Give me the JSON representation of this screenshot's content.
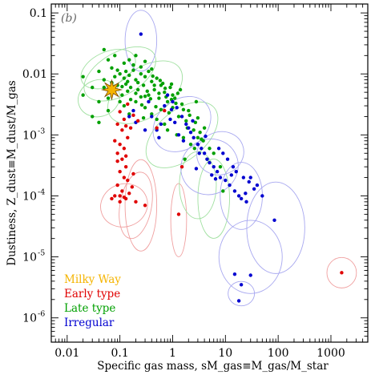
{
  "chart_data": {
    "type": "scatter",
    "panel_label": "(b)",
    "xlabel": "Specific gas mass, sM_gas≡M_gas/M_star",
    "ylabel": "Dustiness, Z_dust≡M_dust/M_gas",
    "xscale": "log",
    "yscale": "log",
    "xlim": [
      0.005,
      5000
    ],
    "ylim": [
      4e-07,
      0.14
    ],
    "x_ticks": [
      {
        "value": 0.01,
        "label": "0.01"
      },
      {
        "value": 0.1,
        "label": "0.1"
      },
      {
        "value": 1,
        "label": "1"
      },
      {
        "value": 10,
        "label": "10"
      },
      {
        "value": 100,
        "label": "100"
      },
      {
        "value": 1000,
        "label": "1000"
      }
    ],
    "y_ticks": [
      {
        "value": 0.1,
        "label": "0.1",
        "exp": ""
      },
      {
        "value": 0.01,
        "label": "0.01",
        "exp": ""
      },
      {
        "value": 0.001,
        "label": "10",
        "exp": "-3"
      },
      {
        "value": 0.0001,
        "label": "10",
        "exp": "-4"
      },
      {
        "value": 1e-05,
        "label": "10",
        "exp": "-5"
      },
      {
        "value": 1e-06,
        "label": "10",
        "exp": "-6"
      }
    ],
    "legend_placement": "bottom-left",
    "legend": [
      {
        "label": "Milky Way",
        "color": "#f5b400"
      },
      {
        "label": "Early type",
        "color": "#e00000"
      },
      {
        "label": "Late type",
        "color": "#00a000"
      },
      {
        "label": "Irregular",
        "color": "#0000d0"
      }
    ],
    "series": [
      {
        "legend_index": 0,
        "color": "#f5b400",
        "marker": "star",
        "points": [
          [
            0.07,
            0.0055
          ]
        ]
      },
      {
        "legend_index": 1,
        "color": "#e00000",
        "marker": "dot",
        "points": [
          [
            0.1,
            0.0024
          ],
          [
            0.12,
            0.0018
          ],
          [
            0.09,
            0.0015
          ],
          [
            0.13,
            0.0014
          ],
          [
            0.11,
            0.0012
          ],
          [
            0.14,
            0.0009
          ],
          [
            0.08,
            0.0008
          ],
          [
            0.1,
            0.0007
          ],
          [
            0.12,
            0.0006
          ],
          [
            0.09,
            0.0005
          ],
          [
            0.11,
            0.0004
          ],
          [
            0.13,
            0.0003
          ],
          [
            0.1,
            0.00025
          ],
          [
            0.12,
            0.0002
          ],
          [
            0.14,
            0.00018
          ],
          [
            0.09,
            0.00015
          ],
          [
            0.11,
            0.00012
          ],
          [
            0.08,
            0.0001
          ],
          [
            0.13,
            9e-05
          ],
          [
            0.1,
            8e-05
          ],
          [
            0.12,
            9.5e-05
          ],
          [
            0.15,
            0.00011
          ],
          [
            0.16,
            0.0013
          ],
          [
            0.18,
            0.0021
          ],
          [
            0.3,
            7e-05
          ],
          [
            0.5,
            0.0013
          ],
          [
            1.3,
            5e-05
          ],
          [
            1.5,
            0.0003
          ],
          [
            0.7,
            0.0025
          ],
          [
            0.22,
            0.0017
          ],
          [
            0.14,
            0.0032
          ],
          [
            0.17,
            0.00014
          ],
          [
            0.18,
            0.00023
          ],
          [
            0.09,
            0.00037
          ],
          [
            0.13,
            0.00045
          ],
          [
            0.1,
            0.0001
          ],
          [
            0.07,
            9e-05
          ],
          [
            0.2,
            8e-05
          ],
          [
            1600,
            5.5e-06
          ]
        ]
      },
      {
        "legend_index": 2,
        "color": "#00a000",
        "marker": "dot",
        "points": [
          [
            0.02,
            0.009
          ],
          [
            0.03,
            0.006
          ],
          [
            0.04,
            0.011
          ],
          [
            0.05,
            0.008
          ],
          [
            0.06,
            0.004
          ],
          [
            0.07,
            0.0125
          ],
          [
            0.05,
            0.006
          ],
          [
            0.08,
            0.009
          ],
          [
            0.09,
            0.0065
          ],
          [
            0.1,
            0.01
          ],
          [
            0.12,
            0.0085
          ],
          [
            0.11,
            0.0045
          ],
          [
            0.13,
            0.011
          ],
          [
            0.15,
            0.0095
          ],
          [
            0.14,
            0.0075
          ],
          [
            0.16,
            0.006
          ],
          [
            0.18,
            0.0115
          ],
          [
            0.2,
            0.008
          ],
          [
            0.22,
            0.0055
          ],
          [
            0.25,
            0.01
          ],
          [
            0.28,
            0.0065
          ],
          [
            0.3,
            0.009
          ],
          [
            0.35,
            0.0045
          ],
          [
            0.4,
            0.0075
          ],
          [
            0.45,
            0.0055
          ],
          [
            0.5,
            0.0085
          ],
          [
            0.55,
            0.004
          ],
          [
            0.6,
            0.0065
          ],
          [
            0.7,
            0.005
          ],
          [
            0.8,
            0.0035
          ],
          [
            0.9,
            0.006
          ],
          [
            1.0,
            0.0028
          ],
          [
            1.1,
            0.004
          ],
          [
            1.3,
            0.002
          ],
          [
            1.5,
            0.0032
          ],
          [
            1.8,
            0.0017
          ],
          [
            2.0,
            0.0025
          ],
          [
            2.5,
            0.0012
          ],
          [
            3.0,
            0.0019
          ],
          [
            3.5,
            0.00085
          ],
          [
            4.0,
            0.0013
          ],
          [
            5.0,
            0.0006
          ],
          [
            0.25,
            0.013
          ],
          [
            0.3,
            0.016
          ],
          [
            0.4,
            0.012
          ],
          [
            0.2,
            0.02
          ],
          [
            0.15,
            0.017
          ],
          [
            0.12,
            0.015
          ],
          [
            0.18,
            0.014
          ],
          [
            0.35,
            0.011
          ],
          [
            0.06,
            0.017
          ],
          [
            0.08,
            0.02
          ],
          [
            0.05,
            0.025
          ],
          [
            0.1,
            0.0035
          ],
          [
            0.12,
            0.003
          ],
          [
            0.2,
            0.0035
          ],
          [
            0.3,
            0.0028
          ],
          [
            0.4,
            0.0022
          ],
          [
            0.5,
            0.0018
          ],
          [
            0.7,
            0.0015
          ],
          [
            1.2,
            0.001
          ],
          [
            1.6,
            0.0009
          ],
          [
            2.2,
            0.0007
          ],
          [
            0.8,
            0.0012
          ],
          [
            0.6,
            0.0026
          ],
          [
            1.0,
            0.0045
          ],
          [
            0.45,
            0.0065
          ],
          [
            0.25,
            0.0042
          ],
          [
            0.16,
            0.0038
          ],
          [
            0.04,
            0.0035
          ],
          [
            0.03,
            0.002
          ],
          [
            0.06,
            0.0025
          ],
          [
            0.15,
            0.0022
          ],
          [
            0.28,
            0.0019
          ],
          [
            0.65,
            0.007
          ],
          [
            1.4,
            0.0055
          ],
          [
            2.8,
            0.0035
          ],
          [
            3.0,
            0.0009
          ],
          [
            6.0,
            0.0005
          ],
          [
            8.0,
            0.0003
          ],
          [
            4.5,
            0.0004
          ],
          [
            2.6,
            0.0006
          ],
          [
            1.7,
            0.0004
          ],
          [
            9.0,
            0.00012
          ],
          [
            0.04,
            0.0016
          ],
          [
            0.02,
            0.0045
          ],
          [
            0.09,
            0.0115
          ],
          [
            0.11,
            0.0062
          ],
          [
            0.22,
            0.0072
          ],
          [
            0.33,
            0.0052
          ],
          [
            0.55,
            0.0048
          ],
          [
            0.75,
            0.0042
          ],
          [
            0.95,
            0.0038
          ],
          [
            1.15,
            0.0033
          ],
          [
            1.6,
            0.0026
          ],
          [
            2.1,
            0.0021
          ],
          [
            2.7,
            0.0016
          ],
          [
            3.3,
            0.0011
          ],
          [
            3.8,
            0.0008
          ],
          [
            0.14,
            0.0052
          ],
          [
            0.26,
            0.0031
          ],
          [
            0.38,
            0.0039
          ],
          [
            0.48,
            0.0029
          ],
          [
            0.85,
            0.0023
          ],
          [
            1.9,
            0.0013
          ],
          [
            0.07,
            0.0072
          ],
          [
            0.13,
            0.0068
          ],
          [
            0.2,
            0.0048
          ],
          [
            0.3,
            0.0043
          ],
          [
            0.42,
            0.0092
          ],
          [
            0.58,
            0.0078
          ],
          [
            0.72,
            0.0058
          ],
          [
            0.95,
            0.0068
          ],
          [
            1.25,
            0.0048
          ]
        ]
      },
      {
        "legend_index": 3,
        "color": "#0000d0",
        "marker": "dot",
        "points": [
          [
            0.25,
            0.045
          ],
          [
            0.8,
            0.0045
          ],
          [
            1.0,
            0.0035
          ],
          [
            1.2,
            0.0028
          ],
          [
            1.5,
            0.002
          ],
          [
            0.9,
            0.0018
          ],
          [
            0.6,
            0.0015
          ],
          [
            0.5,
            0.0012
          ],
          [
            1.8,
            0.0015
          ],
          [
            2.2,
            0.0011
          ],
          [
            2.5,
            0.0009
          ],
          [
            3.0,
            0.0007
          ],
          [
            3.5,
            0.0006
          ],
          [
            4.0,
            0.0005
          ],
          [
            4.5,
            0.0004
          ],
          [
            5.0,
            0.00035
          ],
          [
            6.0,
            0.0003
          ],
          [
            7.0,
            0.00025
          ],
          [
            8.0,
            0.0002
          ],
          [
            10.0,
            0.00018
          ],
          [
            12.0,
            0.00015
          ],
          [
            15.0,
            0.00012
          ],
          [
            18.0,
            0.0001
          ],
          [
            20.0,
            9e-05
          ],
          [
            25.0,
            8e-05
          ],
          [
            30.0,
            0.0002
          ],
          [
            40.0,
            0.00015
          ],
          [
            50.0,
            0.0001
          ],
          [
            9.0,
            0.0005
          ],
          [
            11.0,
            0.0004
          ],
          [
            14.0,
            0.0003
          ],
          [
            16.0,
            0.00025
          ],
          [
            22.0,
            0.0002
          ],
          [
            28.0,
            0.00017
          ],
          [
            35.0,
            0.00013
          ],
          [
            2.0,
            0.0013
          ],
          [
            0.15,
            0.002
          ],
          [
            0.18,
            0.0025
          ],
          [
            0.7,
            0.003
          ],
          [
            0.4,
            0.002
          ],
          [
            3.2,
            0.0005
          ],
          [
            2.8,
            0.00028
          ],
          [
            5.5,
            0.00022
          ],
          [
            6.5,
            0.00019
          ],
          [
            1.3,
            0.001
          ],
          [
            1.6,
            0.0008
          ],
          [
            0.95,
            0.0026
          ],
          [
            0.35,
            0.0035
          ],
          [
            85.0,
            4e-05
          ],
          [
            15.0,
            5.2e-06
          ],
          [
            30.0,
            5e-06
          ],
          [
            20.0,
            3.5e-06
          ],
          [
            18.0,
            1.9e-06
          ],
          [
            4.2,
            0.00095
          ],
          [
            7.5,
            0.0006
          ],
          [
            0.3,
            0.0012
          ],
          [
            0.55,
            0.0009
          ],
          [
            2.4,
            0.0017
          ],
          [
            1.1,
            0.0016
          ],
          [
            13.0,
            0.00022
          ],
          [
            24.0,
            0.00011
          ],
          [
            0.2,
            0.0016
          ]
        ]
      }
    ],
    "uncertainty_ellipses": [
      {
        "series": 1,
        "cx": 0.12,
        "cy": 7e-05,
        "rx": 0.45,
        "ry": 0.35,
        "rot": -20
      },
      {
        "series": 1,
        "cx": 0.2,
        "cy": 7e-05,
        "rx": 0.3,
        "ry": 0.55,
        "rot": 10
      },
      {
        "series": 1,
        "cx": 1.3,
        "cy": 4e-05,
        "rx": 0.15,
        "ry": 0.6,
        "rot": 0
      },
      {
        "series": 1,
        "cx": 1600,
        "cy": 5.5e-06,
        "rx": 0.28,
        "ry": 0.25,
        "rot": 0
      },
      {
        "series": 1,
        "cx": 0.25,
        "cy": 7e-05,
        "rx": 0.3,
        "ry": 0.75,
        "rot": 0
      },
      {
        "series": 2,
        "cx": 0.06,
        "cy": 0.012,
        "rx": 0.55,
        "ry": 0.28,
        "rot": -25
      },
      {
        "series": 2,
        "cx": 0.1,
        "cy": 0.01,
        "rx": 0.75,
        "ry": 0.35,
        "rot": -30
      },
      {
        "series": 2,
        "cx": 0.3,
        "cy": 0.005,
        "rx": 0.8,
        "ry": 0.4,
        "rot": -35
      },
      {
        "series": 2,
        "cx": 1.5,
        "cy": 0.001,
        "rx": 0.8,
        "ry": 0.4,
        "rot": -40
      },
      {
        "series": 2,
        "cx": 3.0,
        "cy": 0.00015,
        "rx": 0.35,
        "ry": 0.55,
        "rot": 0
      },
      {
        "series": 2,
        "cx": 6.0,
        "cy": 9e-05,
        "rx": 0.3,
        "ry": 0.65,
        "rot": 0
      },
      {
        "series": 2,
        "cx": 0.04,
        "cy": 0.004,
        "rx": 0.4,
        "ry": 0.3,
        "rot": -20
      },
      {
        "series": 3,
        "cx": 1.5,
        "cy": 0.0015,
        "rx": 0.6,
        "ry": 0.4,
        "rot": -40
      },
      {
        "series": 3,
        "cx": 5.0,
        "cy": 0.0003,
        "rx": 0.55,
        "ry": 0.45,
        "rot": -30
      },
      {
        "series": 3,
        "cx": 20.0,
        "cy": 0.0001,
        "rx": 0.4,
        "ry": 0.55,
        "rot": 0
      },
      {
        "series": 3,
        "cx": 30.0,
        "cy": 1e-05,
        "rx": 0.6,
        "ry": 0.6,
        "rot": 0
      },
      {
        "series": 3,
        "cx": 90.0,
        "cy": 3e-05,
        "rx": 0.55,
        "ry": 0.75,
        "rot": 0
      },
      {
        "series": 3,
        "cx": 20.0,
        "cy": 2.5e-06,
        "rx": 0.25,
        "ry": 0.2,
        "rot": 0
      },
      {
        "series": 3,
        "cx": 0.25,
        "cy": 0.035,
        "rx": 0.3,
        "ry": 0.5,
        "rot": 0
      },
      {
        "series": 3,
        "cx": 8.0,
        "cy": 0.0005,
        "rx": 0.45,
        "ry": 0.35,
        "rot": -20
      }
    ]
  }
}
